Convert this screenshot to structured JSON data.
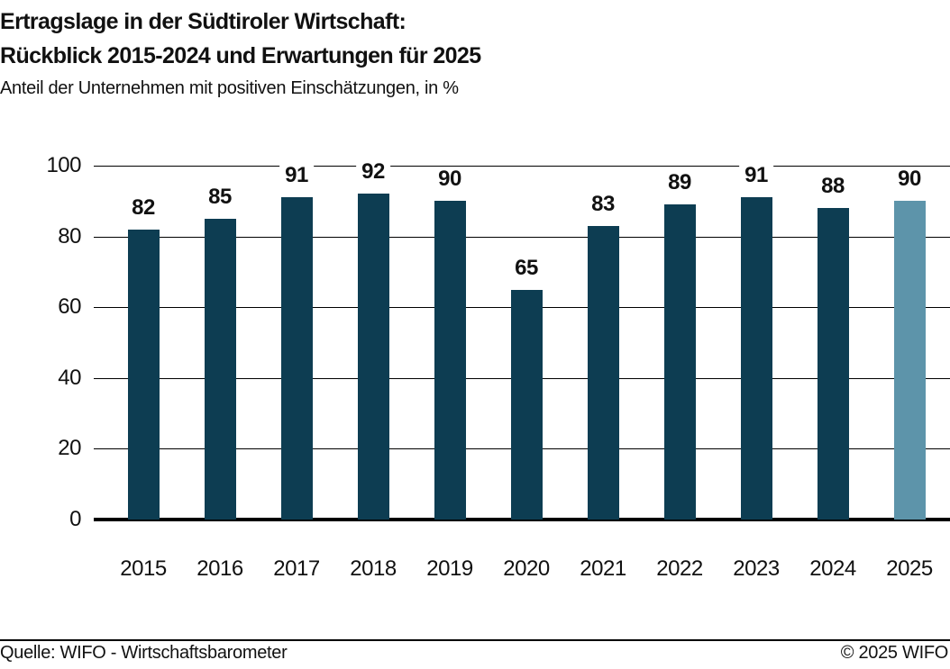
{
  "header": {
    "title_line1": "Ertragslage in der Südtiroler Wirtschaft:",
    "title_line2": "Rückblick 2015-2024 und Erwartungen für 2025",
    "subtitle": "Anteil der Unternehmen mit positiven Einschätzungen, in %"
  },
  "chart_data": {
    "type": "bar",
    "title": "Ertragslage in der Südtiroler Wirtschaft: Rückblick 2015-2024 und Erwartungen für 2025",
    "subtitle": "Anteil der Unternehmen mit positiven Einschätzungen, in %",
    "categories": [
      "2015",
      "2016",
      "2017",
      "2018",
      "2019",
      "2020",
      "2021",
      "2022",
      "2023",
      "2024",
      "2025"
    ],
    "values": [
      82,
      85,
      91,
      92,
      90,
      65,
      83,
      89,
      91,
      88,
      90
    ],
    "highlight_category": "2025",
    "xlabel": "",
    "ylabel": "",
    "ylim": [
      0,
      100
    ],
    "yticks": [
      0,
      20,
      40,
      60,
      80,
      100
    ],
    "grid": true,
    "legend": "none",
    "colors": {
      "bar": "#0d3d52",
      "bar_highlight": "#5d94aa",
      "grid": "#000000",
      "axis": "#000000",
      "text": "#111111"
    }
  },
  "footer": {
    "source": "Quelle: WIFO - Wirtschaftsbarometer",
    "copyright": "© 2025 WIFO"
  }
}
